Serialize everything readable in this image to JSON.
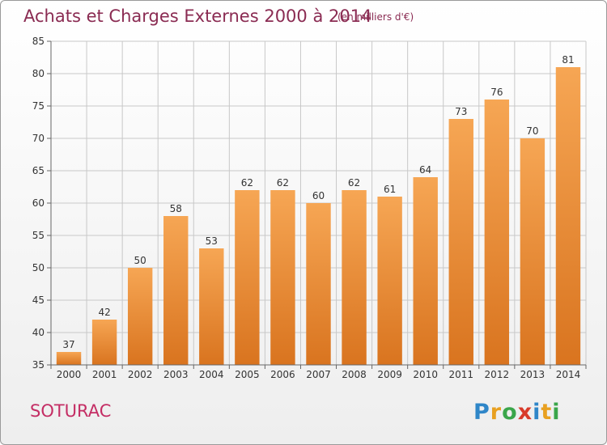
{
  "header": {
    "title": "Achats et Charges Externes 2000 à 2014",
    "unit": "(en milliers d'€)"
  },
  "footer": {
    "commune": "SOTURAC",
    "logo": {
      "letters": [
        "P",
        "r",
        "o",
        "x",
        "i",
        "t",
        "i"
      ],
      "colors": [
        "#2f86c8",
        "#e8a020",
        "#3aa64a",
        "#d83a2a",
        "#2f86c8",
        "#e8a020",
        "#3aa64a"
      ]
    }
  },
  "chart_data": {
    "type": "bar",
    "title": "Achats et Charges Externes 2000 à 2014",
    "subtitle": "(en milliers d'€)",
    "categories": [
      "2000",
      "2001",
      "2002",
      "2003",
      "2004",
      "2005",
      "2006",
      "2007",
      "2008",
      "2009",
      "2010",
      "2011",
      "2012",
      "2013",
      "2014"
    ],
    "values": [
      37,
      42,
      50,
      58,
      53,
      62,
      62,
      60,
      62,
      61,
      64,
      73,
      76,
      70,
      81
    ],
    "data_labels": [
      "37",
      "42",
      "50",
      "58",
      "53",
      "62",
      "62",
      "60",
      "62",
      "61",
      "64",
      "73",
      "76",
      "70",
      "81"
    ],
    "yticks": [
      "35",
      "40",
      "45",
      "50",
      "55",
      "60",
      "65",
      "70",
      "75",
      "80",
      "85"
    ],
    "ylim": [
      35,
      85
    ],
    "ytick_step": 5,
    "grid": true,
    "bar_color_top": "#f6a654",
    "bar_color_bottom": "#d9741f"
  }
}
